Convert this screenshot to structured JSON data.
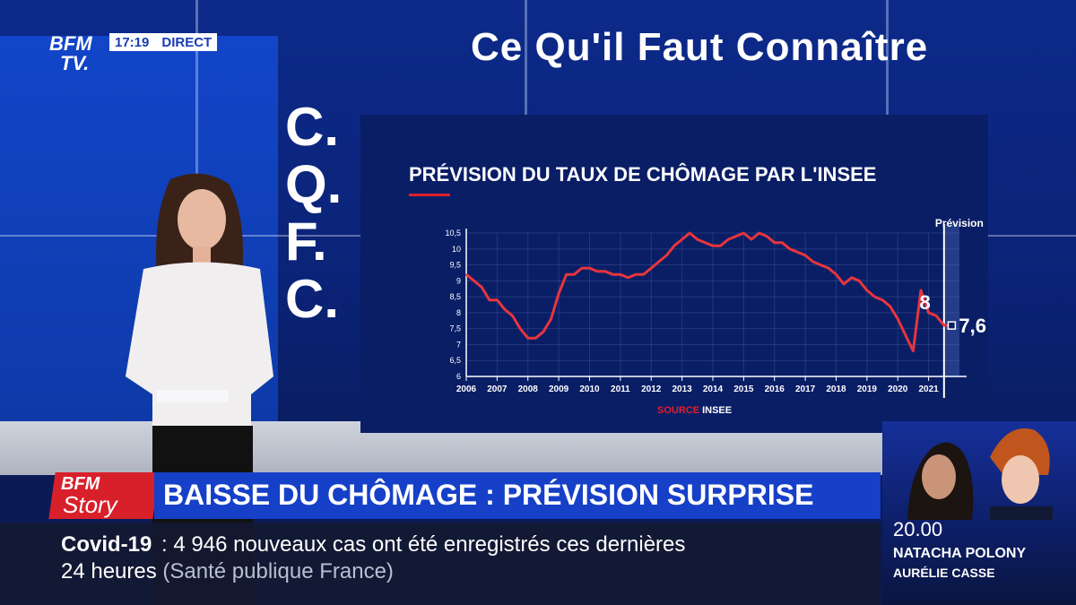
{
  "channel": {
    "logo_line1": "BFM",
    "logo_line2": "TV.",
    "time": "17:19",
    "live_label": "DIRECT"
  },
  "wall": {
    "title": "Ce Qu'il Faut Connaître",
    "acronym": [
      "C.",
      "Q.",
      "F.",
      "C."
    ]
  },
  "chart_data": {
    "type": "line",
    "title": "PRÉVISION DU TAUX DE CHÔMAGE PAR L'INSEE",
    "source_label": "SOURCE",
    "source_value": "INSEE",
    "forecast_label": "Prévision",
    "ylim": [
      6,
      10.5
    ],
    "y_ticks": [
      "6",
      "6,5",
      "7",
      "7,5",
      "8",
      "8,5",
      "9",
      "9,5",
      "10",
      "10,5"
    ],
    "x_ticks": [
      "2006",
      "2007",
      "2008",
      "2009",
      "2010",
      "2011",
      "2012",
      "2013",
      "2014",
      "2015",
      "2016",
      "2017",
      "2018",
      "2019",
      "2020",
      "2021"
    ],
    "series": [
      {
        "values": [
          [
            2006.0,
            9.2
          ],
          [
            2006.25,
            9.0
          ],
          [
            2006.5,
            8.8
          ],
          [
            2006.75,
            8.4
          ],
          [
            2007.0,
            8.4
          ],
          [
            2007.25,
            8.1
          ],
          [
            2007.5,
            7.9
          ],
          [
            2007.75,
            7.5
          ],
          [
            2008.0,
            7.2
          ],
          [
            2008.25,
            7.2
          ],
          [
            2008.5,
            7.4
          ],
          [
            2008.75,
            7.8
          ],
          [
            2009.0,
            8.6
          ],
          [
            2009.25,
            9.2
          ],
          [
            2009.5,
            9.2
          ],
          [
            2009.75,
            9.4
          ],
          [
            2010.0,
            9.4
          ],
          [
            2010.25,
            9.3
          ],
          [
            2010.5,
            9.3
          ],
          [
            2010.75,
            9.2
          ],
          [
            2011.0,
            9.2
          ],
          [
            2011.25,
            9.1
          ],
          [
            2011.5,
            9.2
          ],
          [
            2011.75,
            9.2
          ],
          [
            2012.0,
            9.4
          ],
          [
            2012.25,
            9.6
          ],
          [
            2012.5,
            9.8
          ],
          [
            2012.75,
            10.1
          ],
          [
            2013.0,
            10.3
          ],
          [
            2013.25,
            10.5
          ],
          [
            2013.5,
            10.3
          ],
          [
            2013.75,
            10.2
          ],
          [
            2014.0,
            10.1
          ],
          [
            2014.25,
            10.1
          ],
          [
            2014.5,
            10.3
          ],
          [
            2014.75,
            10.4
          ],
          [
            2015.0,
            10.5
          ],
          [
            2015.25,
            10.3
          ],
          [
            2015.5,
            10.5
          ],
          [
            2015.75,
            10.4
          ],
          [
            2016.0,
            10.2
          ],
          [
            2016.25,
            10.2
          ],
          [
            2016.5,
            10.0
          ],
          [
            2016.75,
            9.9
          ],
          [
            2017.0,
            9.8
          ],
          [
            2017.25,
            9.6
          ],
          [
            2017.5,
            9.5
          ],
          [
            2017.75,
            9.4
          ],
          [
            2018.0,
            9.2
          ],
          [
            2018.25,
            8.9
          ],
          [
            2018.5,
            9.1
          ],
          [
            2018.75,
            9.0
          ],
          [
            2019.0,
            8.7
          ],
          [
            2019.25,
            8.5
          ],
          [
            2019.5,
            8.4
          ],
          [
            2019.75,
            8.2
          ],
          [
            2020.0,
            7.8
          ],
          [
            2020.25,
            7.3
          ],
          [
            2020.5,
            6.8
          ],
          [
            2020.75,
            8.7
          ],
          [
            2021.0,
            8.0
          ],
          [
            2021.25,
            7.9
          ],
          [
            2021.5,
            7.6
          ],
          [
            2021.75,
            7.6
          ]
        ]
      }
    ],
    "annotations": [
      {
        "label": "8",
        "x": 2021.0,
        "y": 8.0
      },
      {
        "label": "7,6",
        "x": 2021.75,
        "y": 7.6
      }
    ],
    "forecast_start": 2021.5,
    "grid": true
  },
  "banner": {
    "badge_line1": "BFM",
    "badge_line2": "Story",
    "headline": "BAISSE DU CHÔMAGE : PRÉVISION SURPRISE"
  },
  "ticker": {
    "topic": "Covid-19",
    "line1": "4 946 nouveaux cas ont été enregistrés ces dernières",
    "line2": "24 heures",
    "source": "(Santé publique France)"
  },
  "promo": {
    "time": "20.00",
    "host1": "NATACHA POLONY",
    "host2": "AURÉLIE CASSE"
  },
  "colors": {
    "series": "#e8353d",
    "accent_red": "#d8202a",
    "banner_blue": "#1640c8"
  }
}
